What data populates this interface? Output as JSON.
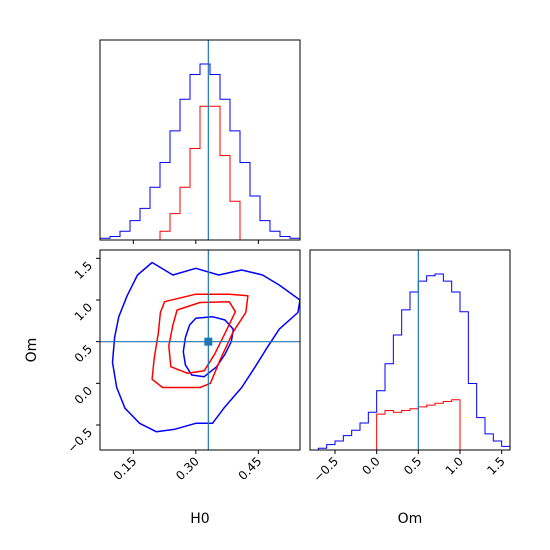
{
  "chart_data": {
    "type": "corner",
    "parameters": [
      "H0",
      "Om"
    ],
    "truths": {
      "H0": 0.33,
      "Om": 0.5
    },
    "colors": {
      "blue": "#0000ff",
      "red": "#ff0000",
      "truth": "#1f77b4"
    },
    "axes": {
      "H0": {
        "label": "H0",
        "range": [
          0.07,
          0.55
        ],
        "ticks": [
          0.15,
          0.3,
          0.45
        ],
        "tick_labels": [
          "0.15",
          "0.30",
          "0.45"
        ]
      },
      "Om": {
        "label": "Om",
        "range": [
          -0.8,
          1.6
        ],
        "ticks": [
          -0.5,
          0.0,
          0.5,
          1.0,
          1.5
        ],
        "tick_labels": [
          "−0.5",
          "0.0",
          "0.5",
          "1.0",
          "1.5"
        ]
      }
    },
    "hist_H0": {
      "edges": [
        0.07,
        0.094,
        0.118,
        0.142,
        0.166,
        0.19,
        0.214,
        0.238,
        0.262,
        0.286,
        0.31,
        0.334,
        0.358,
        0.382,
        0.406,
        0.43,
        0.454,
        0.478,
        0.502,
        0.526,
        0.55
      ],
      "series": [
        {
          "color": "blue",
          "counts": [
            1,
            2,
            5,
            11,
            18,
            30,
            44,
            62,
            80,
            94,
            100,
            94,
            80,
            62,
            44,
            25,
            11,
            5,
            2,
            1
          ]
        },
        {
          "color": "red",
          "counts": [
            0,
            0,
            0,
            0,
            0,
            0,
            5,
            15,
            30,
            52,
            76,
            76,
            48,
            22,
            0,
            0,
            0,
            0,
            0,
            0
          ]
        }
      ]
    },
    "hist_Om": {
      "edges": [
        -0.8,
        -0.7,
        -0.6,
        -0.5,
        -0.4,
        -0.3,
        -0.2,
        -0.1,
        0.0,
        0.1,
        0.2,
        0.3,
        0.4,
        0.5,
        0.6,
        0.7,
        0.8,
        0.9,
        1.0,
        1.1,
        1.2,
        1.3,
        1.4,
        1.5,
        1.6
      ],
      "series": [
        {
          "color": "blue",
          "counts": [
            0,
            1,
            3,
            5,
            8,
            11,
            15,
            21,
            33,
            48,
            64,
            78,
            88,
            94,
            97,
            98,
            94,
            88,
            77,
            37,
            18,
            9,
            5,
            2
          ]
        },
        {
          "color": "red",
          "counts": [
            0,
            0,
            0,
            0,
            0,
            0,
            0,
            0,
            20,
            22,
            21,
            22,
            23,
            24,
            25,
            26,
            27,
            28,
            0,
            0,
            0,
            0,
            0,
            0
          ]
        }
      ]
    },
    "contours_2d": [
      {
        "color": "blue",
        "level": "outer",
        "points": [
          [
            0.195,
            1.45
          ],
          [
            0.245,
            1.3
          ],
          [
            0.3,
            1.38
          ],
          [
            0.355,
            1.3
          ],
          [
            0.41,
            1.36
          ],
          [
            0.46,
            1.3
          ],
          [
            0.5,
            1.18
          ],
          [
            0.55,
            1.0
          ],
          [
            0.545,
            0.85
          ],
          [
            0.5,
            0.65
          ],
          [
            0.47,
            0.42
          ],
          [
            0.44,
            0.18
          ],
          [
            0.41,
            -0.05
          ],
          [
            0.37,
            -0.28
          ],
          [
            0.34,
            -0.48
          ],
          [
            0.3,
            -0.48
          ],
          [
            0.25,
            -0.55
          ],
          [
            0.205,
            -0.58
          ],
          [
            0.165,
            -0.48
          ],
          [
            0.13,
            -0.3
          ],
          [
            0.11,
            -0.05
          ],
          [
            0.1,
            0.25
          ],
          [
            0.105,
            0.55
          ],
          [
            0.115,
            0.8
          ],
          [
            0.135,
            1.05
          ],
          [
            0.16,
            1.3
          ]
        ]
      },
      {
        "color": "blue",
        "level": "inner",
        "points": [
          [
            0.3,
            0.78
          ],
          [
            0.34,
            0.8
          ],
          [
            0.37,
            0.76
          ],
          [
            0.39,
            0.65
          ],
          [
            0.385,
            0.5
          ],
          [
            0.37,
            0.35
          ],
          [
            0.35,
            0.2
          ],
          [
            0.32,
            0.08
          ],
          [
            0.29,
            0.1
          ],
          [
            0.275,
            0.22
          ],
          [
            0.27,
            0.38
          ],
          [
            0.275,
            0.55
          ],
          [
            0.285,
            0.7
          ]
        ]
      },
      {
        "color": "red",
        "level": "outer",
        "points": [
          [
            0.225,
            0.98
          ],
          [
            0.3,
            1.07
          ],
          [
            0.38,
            1.07
          ],
          [
            0.425,
            1.05
          ],
          [
            0.42,
            0.85
          ],
          [
            0.39,
            0.62
          ],
          [
            0.36,
            0.3
          ],
          [
            0.335,
            0.0
          ],
          [
            0.31,
            -0.05
          ],
          [
            0.22,
            -0.05
          ],
          [
            0.195,
            0.05
          ],
          [
            0.2,
            0.3
          ],
          [
            0.21,
            0.6
          ],
          [
            0.215,
            0.85
          ]
        ]
      },
      {
        "color": "red",
        "level": "inner",
        "points": [
          [
            0.255,
            0.88
          ],
          [
            0.31,
            0.97
          ],
          [
            0.38,
            0.98
          ],
          [
            0.395,
            0.86
          ],
          [
            0.37,
            0.6
          ],
          [
            0.345,
            0.35
          ],
          [
            0.32,
            0.15
          ],
          [
            0.28,
            0.12
          ],
          [
            0.24,
            0.2
          ],
          [
            0.235,
            0.45
          ],
          [
            0.245,
            0.7
          ]
        ]
      }
    ]
  }
}
